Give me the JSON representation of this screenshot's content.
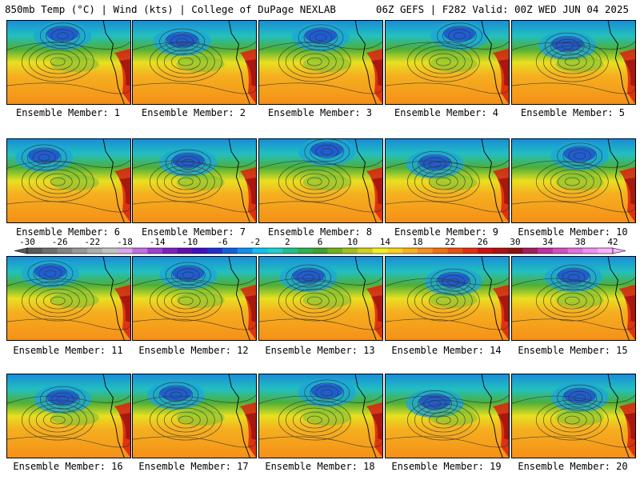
{
  "header": {
    "left": "850mb Temp (°C) | Wind (kts) | College of DuPage NEXLAB",
    "right": "06Z GEFS | F282 Valid: 00Z WED JUN 04 2025"
  },
  "panels": [
    {
      "caption": "Ensemble Member: 1",
      "cold_blob": [
        0.45,
        0.18
      ]
    },
    {
      "caption": "Ensemble Member: 2",
      "cold_blob": [
        0.4,
        0.25
      ]
    },
    {
      "caption": "Ensemble Member: 3",
      "cold_blob": [
        0.5,
        0.2
      ]
    },
    {
      "caption": "Ensemble Member: 4",
      "cold_blob": [
        0.6,
        0.18
      ]
    },
    {
      "caption": "Ensemble Member: 5",
      "cold_blob": [
        0.45,
        0.3
      ]
    },
    {
      "caption": "Ensemble Member: 6",
      "cold_blob": [
        0.3,
        0.22
      ]
    },
    {
      "caption": "Ensemble Member: 7",
      "cold_blob": [
        0.45,
        0.28
      ]
    },
    {
      "caption": "Ensemble Member: 8",
      "cold_blob": [
        0.55,
        0.15
      ]
    },
    {
      "caption": "Ensemble Member: 9",
      "cold_blob": [
        0.4,
        0.3
      ]
    },
    {
      "caption": "Ensemble Member: 10",
      "cold_blob": [
        0.55,
        0.2
      ]
    },
    {
      "caption": "Ensemble Member: 11",
      "cold_blob": [
        0.35,
        0.2
      ]
    },
    {
      "caption": "Ensemble Member: 12",
      "cold_blob": [
        0.45,
        0.22
      ]
    },
    {
      "caption": "Ensemble Member: 13",
      "cold_blob": [
        0.4,
        0.25
      ]
    },
    {
      "caption": "Ensemble Member: 14",
      "cold_blob": [
        0.55,
        0.3
      ]
    },
    {
      "caption": "Ensemble Member: 15",
      "cold_blob": [
        0.5,
        0.25
      ]
    },
    {
      "caption": "Ensemble Member: 16",
      "cold_blob": [
        0.45,
        0.3
      ]
    },
    {
      "caption": "Ensemble Member: 17",
      "cold_blob": [
        0.35,
        0.25
      ]
    },
    {
      "caption": "Ensemble Member: 18",
      "cold_blob": [
        0.55,
        0.22
      ]
    },
    {
      "caption": "Ensemble Member: 19",
      "cold_blob": [
        0.4,
        0.35
      ]
    },
    {
      "caption": "Ensemble Member: 20",
      "cold_blob": [
        0.55,
        0.28
      ]
    }
  ],
  "colorbar": {
    "labels": [
      "-30",
      "-26",
      "-22",
      "-18",
      "-14",
      "-10",
      "-6",
      "-2",
      "2",
      "6",
      "10",
      "14",
      "18",
      "22",
      "26",
      "30",
      "34",
      "38",
      "42"
    ],
    "colors": [
      "#5a5a5a",
      "#6e6e6e",
      "#838383",
      "#989898",
      "#adadad",
      "#c2c2c2",
      "#d8a8e8",
      "#c070e0",
      "#a040d0",
      "#8020c0",
      "#6010b0",
      "#4010c0",
      "#2030d0",
      "#1060e0",
      "#1090f0",
      "#10c0f0",
      "#20d0d0",
      "#20c090",
      "#30b050",
      "#40a030",
      "#70b020",
      "#a0c020",
      "#d0d020",
      "#f0f020",
      "#f8d020",
      "#f8b020",
      "#f89020",
      "#f07010",
      "#e85010",
      "#e03010",
      "#d01010",
      "#b01010",
      "#901010",
      "#a02060",
      "#c030a0",
      "#d050c0",
      "#e070e0",
      "#f090f0",
      "#ffb0ff"
    ]
  }
}
